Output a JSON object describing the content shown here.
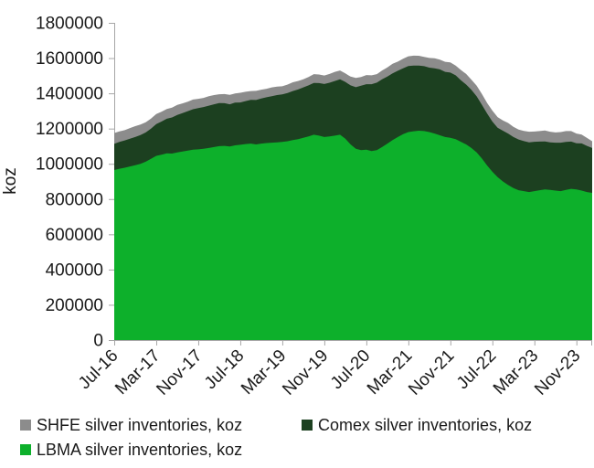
{
  "chart_data": {
    "type": "area",
    "stacked": true,
    "title": "",
    "xlabel": "",
    "ylabel": "koz",
    "ylim": [
      0,
      1800000
    ],
    "y_ticks": [
      0,
      200000,
      400000,
      600000,
      800000,
      1000000,
      1200000,
      1400000,
      1600000,
      1800000
    ],
    "grid": false,
    "legend_position": "bottom",
    "x_tick_every": 8,
    "x_tick_labels": [
      "Jul-16",
      "Mar-17",
      "Nov-17",
      "Jul-18",
      "Mar-19",
      "Nov-19",
      "Jul-20",
      "Mar-21",
      "Nov-21",
      "Jul-22",
      "Mar-23",
      "Nov-23"
    ],
    "categories": [
      "Jul-16",
      "Aug-16",
      "Sep-16",
      "Oct-16",
      "Nov-16",
      "Dec-16",
      "Jan-17",
      "Feb-17",
      "Mar-17",
      "Apr-17",
      "May-17",
      "Jun-17",
      "Jul-17",
      "Aug-17",
      "Sep-17",
      "Oct-17",
      "Nov-17",
      "Dec-17",
      "Jan-18",
      "Feb-18",
      "Mar-18",
      "Apr-18",
      "May-18",
      "Jun-18",
      "Jul-18",
      "Aug-18",
      "Sep-18",
      "Oct-18",
      "Nov-18",
      "Dec-18",
      "Jan-19",
      "Feb-19",
      "Mar-19",
      "Apr-19",
      "May-19",
      "Jun-19",
      "Jul-19",
      "Aug-19",
      "Sep-19",
      "Oct-19",
      "Nov-19",
      "Dec-19",
      "Jan-20",
      "Feb-20",
      "Mar-20",
      "Apr-20",
      "May-20",
      "Jun-20",
      "Jul-20",
      "Aug-20",
      "Sep-20",
      "Oct-20",
      "Nov-20",
      "Dec-20",
      "Jan-21",
      "Feb-21",
      "Mar-21",
      "Apr-21",
      "May-21",
      "Jun-21",
      "Jul-21",
      "Aug-21",
      "Sep-21",
      "Oct-21",
      "Nov-21",
      "Dec-21",
      "Jan-22",
      "Feb-22",
      "Mar-22",
      "Apr-22",
      "May-22",
      "Jun-22",
      "Jul-22",
      "Aug-22",
      "Sep-22",
      "Oct-22",
      "Nov-22",
      "Dec-22",
      "Jan-23",
      "Feb-23",
      "Mar-23",
      "Apr-23",
      "May-23",
      "Jun-23",
      "Jul-23",
      "Aug-23",
      "Sep-23",
      "Oct-23",
      "Nov-23",
      "Dec-23",
      "Jan-24",
      "Feb-24"
    ],
    "series": [
      {
        "name": "LBMA silver inventories, koz",
        "color": "#0db02b",
        "values": [
          965000,
          972000,
          978000,
          985000,
          992000,
          1000000,
          1012000,
          1028000,
          1045000,
          1052000,
          1060000,
          1058000,
          1065000,
          1070000,
          1075000,
          1080000,
          1082000,
          1085000,
          1090000,
          1095000,
          1100000,
          1102000,
          1098000,
          1105000,
          1108000,
          1112000,
          1115000,
          1110000,
          1115000,
          1118000,
          1120000,
          1122000,
          1124000,
          1128000,
          1135000,
          1140000,
          1148000,
          1155000,
          1165000,
          1160000,
          1152000,
          1155000,
          1160000,
          1165000,
          1143000,
          1110000,
          1085000,
          1078000,
          1080000,
          1072000,
          1078000,
          1095000,
          1115000,
          1135000,
          1152000,
          1168000,
          1180000,
          1185000,
          1188000,
          1186000,
          1180000,
          1172000,
          1162000,
          1152000,
          1148000,
          1140000,
          1125000,
          1110000,
          1090000,
          1065000,
          1030000,
          990000,
          955000,
          925000,
          900000,
          880000,
          862000,
          850000,
          845000,
          840000,
          845000,
          850000,
          855000,
          852000,
          848000,
          845000,
          852000,
          858000,
          855000,
          848000,
          840000,
          835000
        ]
      },
      {
        "name": "Comex silver inventories, koz",
        "color": "#1c4020",
        "values": [
          148000,
          152000,
          155000,
          158000,
          160000,
          163000,
          166000,
          172000,
          180000,
          188000,
          196000,
          205000,
          212000,
          218000,
          224000,
          230000,
          234000,
          237000,
          240000,
          243000,
          245000,
          242000,
          240000,
          242000,
          240000,
          244000,
          248000,
          252000,
          256000,
          260000,
          264000,
          268000,
          270000,
          274000,
          278000,
          282000,
          286000,
          290000,
          294000,
          298000,
          301000,
          305000,
          310000,
          315000,
          322000,
          335000,
          350000,
          365000,
          372000,
          380000,
          383000,
          385000,
          380000,
          378000,
          376000,
          374000,
          375000,
          372000,
          370000,
          368000,
          366000,
          370000,
          374000,
          370000,
          370000,
          362000,
          350000,
          340000,
          330000,
          318000,
          305000,
          295000,
          285000,
          280000,
          288000,
          292000,
          290000,
          288000,
          284000,
          282000,
          280000,
          276000,
          272000,
          270000,
          272000,
          275000,
          272000,
          268000,
          262000,
          268000,
          262000,
          255000
        ]
      },
      {
        "name": "SHFE silver inventories, koz",
        "color": "#8c8c8c",
        "values": [
          62000,
          60000,
          58000,
          60000,
          62000,
          60000,
          58000,
          57000,
          58000,
          56000,
          55000,
          56000,
          57000,
          55000,
          54000,
          55000,
          53000,
          52000,
          54000,
          52000,
          50000,
          52000,
          54000,
          52000,
          55000,
          53000,
          50000,
          52000,
          50000,
          48000,
          50000,
          48000,
          46000,
          48000,
          50000,
          48000,
          46000,
          48000,
          50000,
          49000,
          48000,
          50000,
          52000,
          50000,
          48000,
          50000,
          52000,
          50000,
          52000,
          50000,
          48000,
          50000,
          52000,
          55000,
          52000,
          54000,
          55000,
          57000,
          55000,
          53000,
          55000,
          57000,
          55000,
          57000,
          58000,
          56000,
          58000,
          60000,
          58000,
          60000,
          62000,
          60000,
          62000,
          60000,
          58000,
          60000,
          58000,
          56000,
          58000,
          60000,
          58000,
          60000,
          62000,
          60000,
          58000,
          60000,
          62000,
          60000,
          55000,
          50000,
          45000,
          38000
        ]
      }
    ],
    "axis_color": "#a6a6a6",
    "text_color": "#1a1a1a"
  }
}
